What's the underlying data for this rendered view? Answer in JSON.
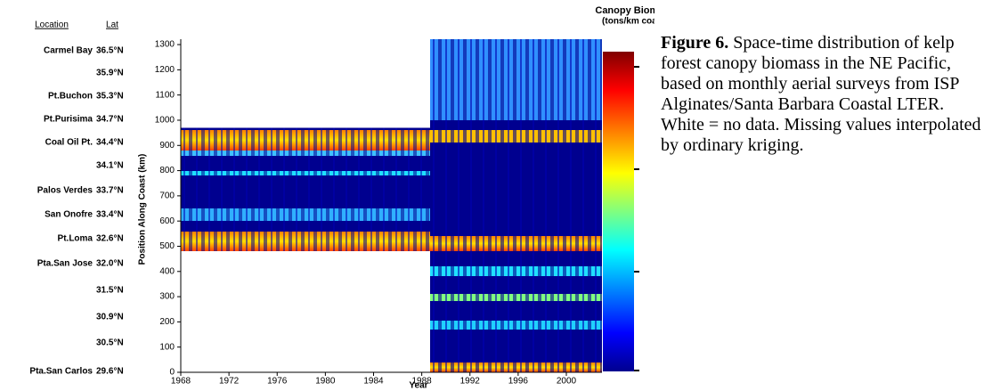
{
  "chart_data": {
    "type": "heatmap",
    "x_label": "Year",
    "y_label": "Position Along Coast (km)",
    "xlim": [
      1968,
      2003
    ],
    "ylim": [
      0,
      1320
    ],
    "xticks": [
      1968,
      1972,
      1976,
      1980,
      1984,
      1988,
      1992,
      1996,
      2000
    ],
    "yticks": [
      0,
      100,
      200,
      300,
      400,
      500,
      600,
      700,
      800,
      900,
      1000,
      1100,
      1200,
      1300
    ],
    "colorbar_title": [
      "Canopy Biomass",
      "(tons/km coast)"
    ]
  },
  "locations": {
    "header": [
      "Location",
      "Lat"
    ],
    "rows": [
      {
        "name": "Carmel Bay",
        "lat": "36.5°N"
      },
      {
        "lat": "35.9°N"
      },
      {
        "name": "Pt.Buchon",
        "lat": "35.3°N"
      },
      {
        "name": "Pt.Purisima",
        "lat": "34.7°N"
      },
      {
        "name": "Coal Oil Pt.",
        "lat": "34.4°N"
      },
      {
        "lat": "34.1°N"
      },
      {
        "name": "Palos Verdes",
        "lat": "33.7°N"
      },
      {
        "name": "San Onofre",
        "lat": "33.4°N"
      },
      {
        "name": "Pt.Loma",
        "lat": "32.6°N"
      },
      {
        "name": "Pta.San Jose",
        "lat": "32.0°N"
      },
      {
        "lat": "31.5°N"
      },
      {
        "lat": "30.9°N"
      },
      {
        "lat": "30.5°N"
      },
      {
        "name": "Pta.San Carlos",
        "lat": "29.6°N"
      }
    ]
  },
  "caption": {
    "label": "Figure 6.",
    "text": "Space-time distribution of kelp forest canopy biomass in the NE Pacific, based on monthly aerial surveys from ISP Alginates/Santa Barbara Coastal LTER.  White = no data.  Missing values interpolated by ordinary kriging."
  }
}
